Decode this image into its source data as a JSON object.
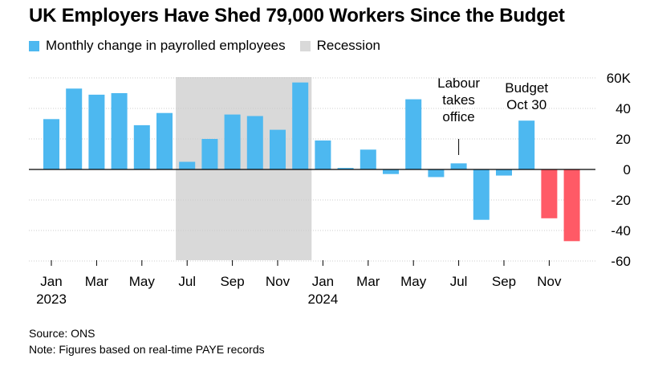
{
  "title": "UK Employers Have Shed 79,000 Workers Since the Budget",
  "legend": {
    "series_label": "Monthly change in payrolled employees",
    "recession_label": "Recession"
  },
  "colors": {
    "positive": "#4db8f0",
    "negative": "#ff5a66",
    "recession": "#d9d9d9",
    "grid": "#cccccc",
    "zero": "#000000"
  },
  "footer": {
    "source": "Source: ONS",
    "note": "Note: Figures based on real-time PAYE records"
  },
  "chart_data": {
    "type": "bar",
    "categories": [
      "Jan 2023",
      "Feb 2023",
      "Mar 2023",
      "Apr 2023",
      "May 2023",
      "Jun 2023",
      "Jul 2023",
      "Aug 2023",
      "Sep 2023",
      "Oct 2023",
      "Nov 2023",
      "Dec 2023",
      "Jan 2024",
      "Feb 2024",
      "Mar 2024",
      "Apr 2024",
      "May 2024",
      "Jun 2024",
      "Jul 2024",
      "Aug 2024",
      "Sep 2024",
      "Oct 2024",
      "Nov 2024",
      "Dec 2024"
    ],
    "series": [
      {
        "name": "Monthly change in payrolled employees",
        "values": [
          33,
          53,
          49,
          50,
          29,
          37,
          5,
          20,
          36,
          35,
          26,
          57,
          19,
          1,
          13,
          -3,
          46,
          -5,
          4,
          -33,
          -4,
          32,
          -32,
          -47
        ]
      }
    ],
    "recession": {
      "start": "Jul 2023",
      "end": "Dec 2023"
    },
    "ylim": [
      -60,
      60
    ],
    "y_ticks": [
      -60,
      -40,
      -20,
      0,
      20,
      40,
      60
    ],
    "y_tick_labels": [
      "-60",
      "-40",
      "-20",
      "0",
      "20",
      "40",
      "60K"
    ],
    "x_tick_labels": [
      "Jan",
      "Mar",
      "May",
      "Jul",
      "Sep",
      "Nov",
      "Jan",
      "Mar",
      "May",
      "Jul",
      "Sep",
      "Nov"
    ],
    "x_year_labels": [
      "2023",
      "2024"
    ],
    "annotations": [
      {
        "lines": [
          "Labour",
          "takes",
          "office"
        ],
        "category": "Jul 2024"
      },
      {
        "lines": [
          "Budget",
          "Oct 30"
        ],
        "category": "Oct 2024"
      }
    ],
    "grid": true,
    "y_axis_position": "right",
    "legend_position": "top-left"
  }
}
